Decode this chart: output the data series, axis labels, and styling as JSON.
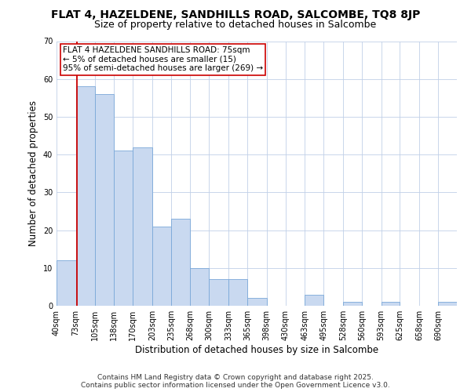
{
  "title": "FLAT 4, HAZELDENE, SANDHILLS ROAD, SALCOMBE, TQ8 8JP",
  "subtitle": "Size of property relative to detached houses in Salcombe",
  "xlabel": "Distribution of detached houses by size in Salcombe",
  "ylabel": "Number of detached properties",
  "bar_edges": [
    40,
    73,
    105,
    138,
    170,
    203,
    235,
    268,
    300,
    333,
    365,
    398,
    430,
    463,
    495,
    528,
    560,
    593,
    625,
    658,
    690
  ],
  "bar_heights": [
    12,
    58,
    56,
    41,
    42,
    21,
    23,
    10,
    7,
    7,
    2,
    0,
    0,
    3,
    0,
    1,
    0,
    1,
    0,
    0,
    1
  ],
  "tick_labels": [
    "40sqm",
    "73sqm",
    "105sqm",
    "138sqm",
    "170sqm",
    "203sqm",
    "235sqm",
    "268sqm",
    "300sqm",
    "333sqm",
    "365sqm",
    "398sqm",
    "430sqm",
    "463sqm",
    "495sqm",
    "528sqm",
    "560sqm",
    "593sqm",
    "625sqm",
    "658sqm",
    "690sqm"
  ],
  "bar_color": "#c9d9f0",
  "bar_edge_color": "#7aa8d8",
  "vline_x": 75,
  "vline_color": "#cc0000",
  "annotation_lines": [
    "FLAT 4 HAZELDENE SANDHILLS ROAD: 75sqm",
    "← 5% of detached houses are smaller (15)",
    "95% of semi-detached houses are larger (269) →"
  ],
  "annotation_box_facecolor": "#ffffff",
  "annotation_box_edgecolor": "#cc0000",
  "ylim": [
    0,
    70
  ],
  "yticks": [
    0,
    10,
    20,
    30,
    40,
    50,
    60,
    70
  ],
  "footer_line1": "Contains HM Land Registry data © Crown copyright and database right 2025.",
  "footer_line2": "Contains public sector information licensed under the Open Government Licence v3.0.",
  "background_color": "#ffffff",
  "grid_color": "#c0d0e8",
  "title_fontsize": 10,
  "subtitle_fontsize": 9,
  "axis_label_fontsize": 8.5,
  "tick_fontsize": 7,
  "annotation_fontsize": 7.5,
  "footer_fontsize": 6.5
}
